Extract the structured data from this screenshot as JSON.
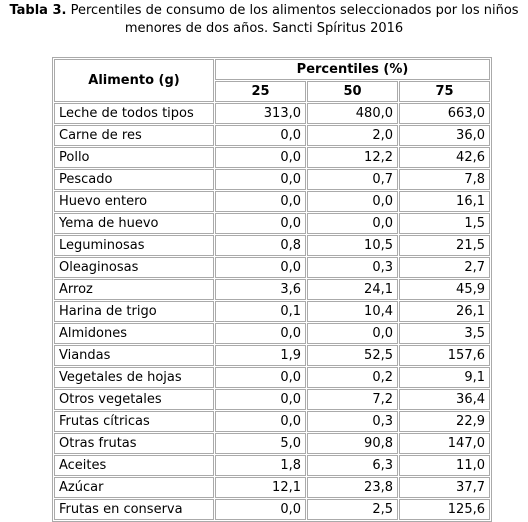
{
  "caption": {
    "label": "Tabla 3.",
    "text": "Percentiles de consumo de los alimentos seleccionados por los niños menores de dos años. Sancti Spíritus 2016"
  },
  "table": {
    "header": {
      "food": "Alimento (g)",
      "group": "Percentiles (%)",
      "percentiles": [
        "25",
        "50",
        "75"
      ]
    },
    "rows": [
      [
        "Leche de todos tipos",
        "313,0",
        "480,0",
        "663,0"
      ],
      [
        "Carne de res",
        "0,0",
        "2,0",
        "36,0"
      ],
      [
        "Pollo",
        "0,0",
        "12,2",
        "42,6"
      ],
      [
        "Pescado",
        "0,0",
        "0,7",
        "7,8"
      ],
      [
        "Huevo entero",
        "0,0",
        "0,0",
        "16,1"
      ],
      [
        "Yema de huevo",
        "0,0",
        "0,0",
        "1,5"
      ],
      [
        "Leguminosas",
        "0,8",
        "10,5",
        "21,5"
      ],
      [
        "Oleaginosas",
        "0,0",
        "0,3",
        "2,7"
      ],
      [
        "Arroz",
        "3,6",
        "24,1",
        "45,9"
      ],
      [
        "Harina de trigo",
        "0,1",
        "10,4",
        "26,1"
      ],
      [
        "Almidones",
        "0,0",
        "0,0",
        "3,5"
      ],
      [
        "Viandas",
        "1,9",
        "52,5",
        "157,6"
      ],
      [
        "Vegetales de hojas",
        "0,0",
        "0,2",
        "9,1"
      ],
      [
        "Otros vegetales",
        "0,0",
        "7,2",
        "36,4"
      ],
      [
        "Frutas cítricas",
        "0,0",
        "0,3",
        "22,9"
      ],
      [
        "Otras frutas",
        "5,0",
        "90,8",
        "147,0"
      ],
      [
        "Aceites",
        "1,8",
        "6,3",
        "11,0"
      ],
      [
        "Azúcar",
        "12,1",
        "23,8",
        "37,7"
      ],
      [
        "Frutas en conserva",
        "0,0",
        "2,5",
        "125,6"
      ]
    ]
  }
}
